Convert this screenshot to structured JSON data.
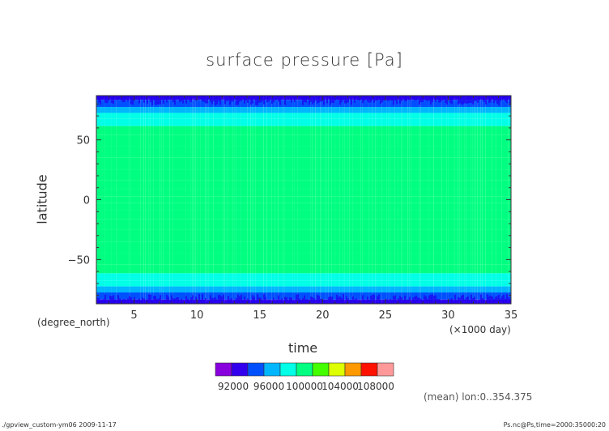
{
  "title": "surface pressure [Pa]",
  "ylabel": "latitude",
  "yunits": "(degree_north)",
  "xlabel": "time",
  "xunits": "(×1000 day)",
  "mean_note": "(mean) lon:0..354.375",
  "footer_left": "./gpview_custom-ym06   2009-11-17",
  "footer_right": "Ps.nc@Ps,time=2000:35000:20",
  "chart_data": {
    "type": "heatmap",
    "title": "surface pressure [Pa]",
    "xlabel": "time",
    "ylabel": "latitude",
    "x_units": "(×1000 day)",
    "y_units": "(degree_north)",
    "xlim": [
      2,
      35
    ],
    "ylim": [
      -87,
      87
    ],
    "x_ticks": [
      5,
      10,
      15,
      20,
      25,
      30,
      35
    ],
    "y_ticks": [
      -50,
      0,
      50
    ],
    "lat_profile": [
      {
        "lat": 87,
        "value": 93500
      },
      {
        "lat": 80,
        "value": 95000
      },
      {
        "lat": 75,
        "value": 96500
      },
      {
        "lat": 70,
        "value": 98500
      },
      {
        "lat": 65,
        "value": 99500
      },
      {
        "lat": 58,
        "value": 100500
      },
      {
        "lat": 50,
        "value": 101500
      },
      {
        "lat": 40,
        "value": 101500
      },
      {
        "lat": 30,
        "value": 101500
      },
      {
        "lat": 20,
        "value": 101000
      },
      {
        "lat": 12,
        "value": 100500
      },
      {
        "lat": 5,
        "value": 101000
      },
      {
        "lat": 0,
        "value": 101000
      },
      {
        "lat": -5,
        "value": 101000
      },
      {
        "lat": -12,
        "value": 100500
      },
      {
        "lat": -20,
        "value": 101000
      },
      {
        "lat": -30,
        "value": 101500
      },
      {
        "lat": -40,
        "value": 101500
      },
      {
        "lat": -50,
        "value": 101500
      },
      {
        "lat": -58,
        "value": 100500
      },
      {
        "lat": -65,
        "value": 99500
      },
      {
        "lat": -70,
        "value": 98500
      },
      {
        "lat": -75,
        "value": 96500
      },
      {
        "lat": -80,
        "value": 95000
      },
      {
        "lat": -87,
        "value": 93500
      }
    ],
    "colorbar": {
      "levels": [
        90000,
        92000,
        94000,
        96000,
        98000,
        100000,
        102000,
        104000,
        106000,
        108000,
        110000
      ],
      "labels": [
        "92000",
        "96000",
        "100000",
        "104000",
        "108000"
      ],
      "label_values": [
        92000,
        96000,
        100000,
        104000,
        108000
      ],
      "colors": [
        "#8800dd",
        "#3300ee",
        "#0050ff",
        "#00b6ff",
        "#00ffe6",
        "#00ff80",
        "#44ff00",
        "#ddff00",
        "#ff9900",
        "#ff1100",
        "#ff9999"
      ]
    }
  }
}
